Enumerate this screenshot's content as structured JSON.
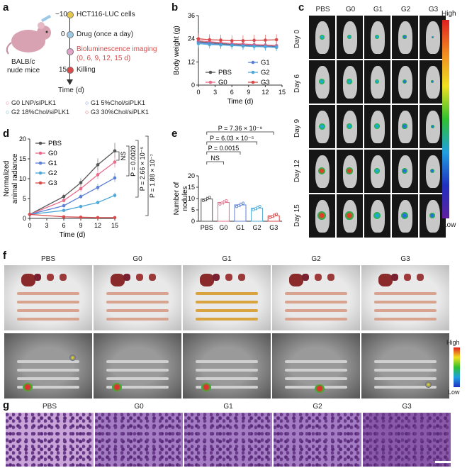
{
  "panel_labels": {
    "a": "a",
    "b": "b",
    "c": "c",
    "d": "d",
    "e": "e",
    "f": "f",
    "g": "g"
  },
  "panel_a": {
    "cells": "HCT116-LUC cells",
    "drug": "Drug (once a day)",
    "imaging_1": "Bioluminescence imaging",
    "imaging_2": "(0, 6, 9, 12, 15 d)",
    "killing": "Killing",
    "time_axis": "Time (d)",
    "ticks": [
      "−10",
      "0",
      "15"
    ],
    "mouse_label_1": "BALB/c",
    "mouse_label_2": "nude mice",
    "legend": [
      "G0 LNP/siPLK1",
      "G1 5%Chol/siPLK1",
      "G2 18%Chol/siPLK1",
      "G3 30%Chol/siPLK1"
    ],
    "legend_colors": [
      "#e86b8a",
      "#5b7fd6",
      "#4fa8d8",
      "#d94a4a"
    ]
  },
  "chart_data": [
    {
      "id": "b",
      "type": "line",
      "xlabel": "Time (d)",
      "ylabel": "Body weight (g)",
      "xlim": [
        0,
        15
      ],
      "ylim": [
        0,
        36
      ],
      "xticks": [
        "0",
        "3",
        "6",
        "9",
        "12",
        "15"
      ],
      "yticks": [
        "0",
        "12",
        "24",
        "36"
      ],
      "x": [
        0,
        2,
        4,
        6,
        8,
        10,
        12,
        14
      ],
      "series": [
        {
          "name": "PBS",
          "color": "#555555",
          "values": [
            22.5,
            22,
            21.5,
            21,
            20.8,
            20.5,
            20.3,
            20
          ]
        },
        {
          "name": "G0",
          "color": "#e86b8a",
          "values": [
            23,
            22.5,
            22,
            21.5,
            21.3,
            21,
            20.8,
            20.5
          ]
        },
        {
          "name": "G1",
          "color": "#5b7fd6",
          "values": [
            22,
            21.5,
            21,
            20.8,
            20.5,
            20.3,
            20,
            19.8
          ]
        },
        {
          "name": "G2",
          "color": "#4fa8d8",
          "values": [
            21.5,
            21,
            20.8,
            20.5,
            20.2,
            20,
            19.8,
            19.5
          ]
        },
        {
          "name": "G3",
          "color": "#d94a4a",
          "values": [
            24,
            23.5,
            23.3,
            23,
            23,
            23.2,
            23.3,
            23.5
          ]
        }
      ]
    },
    {
      "id": "d",
      "type": "line",
      "xlabel": "Time (d)",
      "ylabel": "Normalized animal radiance",
      "xlim": [
        0,
        15
      ],
      "ylim": [
        0,
        20
      ],
      "xticks": [
        "0",
        "3",
        "6",
        "9",
        "12",
        "15"
      ],
      "yticks": [
        "0",
        "5",
        "10",
        "15",
        "20"
      ],
      "x": [
        0,
        6,
        9,
        12,
        15
      ],
      "series": [
        {
          "name": "PBS",
          "color": "#555555",
          "values": [
            1,
            5.5,
            9,
            13.5,
            17
          ]
        },
        {
          "name": "G0",
          "color": "#e86b8a",
          "values": [
            1,
            4.5,
            7.5,
            11,
            14.2
          ]
        },
        {
          "name": "G1",
          "color": "#5b7fd6",
          "values": [
            1,
            3.2,
            5.5,
            7.8,
            10.2
          ]
        },
        {
          "name": "G2",
          "color": "#4fa8d8",
          "values": [
            1,
            2,
            3,
            4,
            5.8
          ]
        },
        {
          "name": "G3",
          "color": "#d94a4a",
          "values": [
            1,
            0.4,
            0.3,
            0.2,
            0.2
          ]
        }
      ],
      "annotations": [
        "NS",
        "P = 0.0020",
        "P = 2.66 × 10⁻⁵",
        "P = 1.88 × 10⁻⁷"
      ]
    },
    {
      "id": "e",
      "type": "bar",
      "xlabel": "",
      "ylabel": "Number of nodules",
      "ylim": [
        0,
        20
      ],
      "yticks": [
        "0",
        "5",
        "10",
        "15",
        "20"
      ],
      "categories": [
        "PBS",
        "G0",
        "G1",
        "G2",
        "G3"
      ],
      "values": [
        9.8,
        8.3,
        7.2,
        5.8,
        2.4
      ],
      "colors": [
        "#555555",
        "#e86b8a",
        "#5b7fd6",
        "#4fa8d8",
        "#d94a4a"
      ],
      "annotations": [
        "P = 7.36 × 10⁻⁹",
        "P = 6.03 × 10⁻⁵",
        "P = 0.0015",
        "NS"
      ]
    }
  ],
  "panel_c": {
    "columns": [
      "PBS",
      "G0",
      "G1",
      "G2",
      "G3"
    ],
    "rows": [
      "Day 0",
      "Day 6",
      "Day 9",
      "Day 12",
      "Day 15"
    ],
    "scale_high": "High",
    "scale_low": "Low"
  },
  "panel_f": {
    "columns": [
      "PBS",
      "G0",
      "G1",
      "G2",
      "G3"
    ],
    "scale_high": "High",
    "scale_low": "Low"
  },
  "panel_g": {
    "columns": [
      "PBS",
      "G0",
      "G1",
      "G2",
      "G3"
    ]
  }
}
